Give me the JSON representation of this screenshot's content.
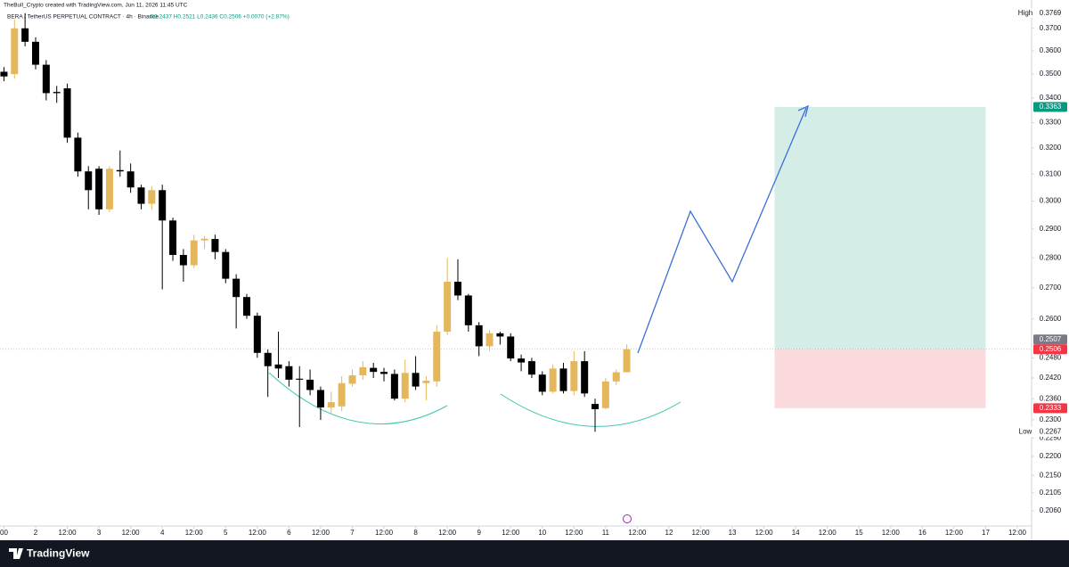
{
  "chart_data": {
    "type": "candlestick",
    "credit": "TheBull_Crypto created with TradingView.com, Jun 11, 2026 11:45 UTC",
    "title": "BERA / TetherUS PERPETUAL CONTRACT · 4h · Binance",
    "subtitle": "O0.2437 H0.2521 L0.2436 C0.2506 +0.0070 (+2.87%)",
    "brand": "TradingView",
    "log_scale": true,
    "grid": false,
    "up_color": "#e5b75c",
    "down_color": "#000000",
    "x": [
      12,
      16,
      20,
      24,
      28,
      32,
      36,
      40,
      44,
      48,
      52,
      56,
      60,
      64,
      68,
      72,
      76,
      80,
      84,
      88,
      92,
      96,
      100,
      104,
      108,
      112,
      116,
      120,
      124,
      128,
      132,
      136,
      140,
      144,
      148,
      152,
      156,
      160,
      164,
      168,
      172,
      176,
      180,
      184,
      188,
      192,
      196,
      200,
      204,
      208,
      212,
      216,
      220,
      224,
      228,
      232,
      236,
      240,
      244,
      248
    ],
    "open": [
      0.351,
      0.35,
      0.37,
      0.364,
      0.354,
      0.3425,
      0.344,
      0.324,
      0.311,
      0.312,
      0.297,
      0.3115,
      0.311,
      0.305,
      0.299,
      0.304,
      0.293,
      0.281,
      0.2775,
      0.286,
      0.2865,
      0.282,
      0.273,
      0.267,
      0.261,
      0.2495,
      0.246,
      0.2455,
      0.2418,
      0.2415,
      0.2385,
      0.2335,
      0.2338,
      0.2403,
      0.2428,
      0.245,
      0.2438,
      0.2432,
      0.236,
      0.2435,
      0.2405,
      0.241,
      0.256,
      0.272,
      0.2675,
      0.258,
      0.2515,
      0.2555,
      0.2545,
      0.2478,
      0.247,
      0.243,
      0.238,
      0.2448,
      0.2382,
      0.247,
      0.2345,
      0.2333,
      0.241,
      0.2437
    ],
    "high": [
      0.353,
      0.374,
      0.3769,
      0.366,
      0.356,
      0.345,
      0.346,
      0.326,
      0.313,
      0.313,
      0.313,
      0.319,
      0.314,
      0.306,
      0.3055,
      0.306,
      0.294,
      0.283,
      0.288,
      0.2875,
      0.288,
      0.283,
      0.2745,
      0.268,
      0.262,
      0.2505,
      0.256,
      0.247,
      0.2455,
      0.2445,
      0.2395,
      0.238,
      0.2425,
      0.2445,
      0.247,
      0.2465,
      0.245,
      0.2445,
      0.2475,
      0.2485,
      0.2425,
      0.258,
      0.28,
      0.2795,
      0.268,
      0.259,
      0.2565,
      0.256,
      0.2555,
      0.249,
      0.248,
      0.244,
      0.246,
      0.2465,
      0.25,
      0.25,
      0.236,
      0.242,
      0.2445,
      0.2521
    ],
    "low": [
      0.347,
      0.348,
      0.362,
      0.352,
      0.339,
      0.338,
      0.322,
      0.309,
      0.297,
      0.295,
      0.296,
      0.309,
      0.303,
      0.297,
      0.297,
      0.2695,
      0.279,
      0.272,
      0.2765,
      0.283,
      0.2795,
      0.2715,
      0.257,
      0.26,
      0.248,
      0.2365,
      0.242,
      0.2395,
      0.228,
      0.237,
      0.23,
      0.2315,
      0.2325,
      0.2395,
      0.2415,
      0.242,
      0.241,
      0.2355,
      0.235,
      0.2385,
      0.2355,
      0.2395,
      0.255,
      0.266,
      0.256,
      0.2485,
      0.25,
      0.252,
      0.247,
      0.244,
      0.242,
      0.237,
      0.2375,
      0.2375,
      0.237,
      0.2365,
      0.2267,
      0.233,
      0.24,
      0.2436
    ],
    "close": [
      0.349,
      0.37,
      0.364,
      0.354,
      0.342,
      0.342,
      0.324,
      0.311,
      0.304,
      0.297,
      0.312,
      0.311,
      0.305,
      0.299,
      0.304,
      0.293,
      0.281,
      0.2775,
      0.286,
      0.2866,
      0.282,
      0.273,
      0.267,
      0.261,
      0.2495,
      0.2455,
      0.2448,
      0.2415,
      0.2415,
      0.2385,
      0.2335,
      0.235,
      0.2405,
      0.2428,
      0.2452,
      0.2438,
      0.2432,
      0.236,
      0.2435,
      0.2395,
      0.2412,
      0.256,
      0.272,
      0.2675,
      0.258,
      0.2515,
      0.2555,
      0.2545,
      0.2478,
      0.2466,
      0.243,
      0.238,
      0.2448,
      0.2382,
      0.247,
      0.2375,
      0.233,
      0.241,
      0.2437,
      0.2506
    ],
    "xlim": [
      10.5,
      401.4
    ],
    "xticks": [
      {
        "value": 12,
        "label": "00"
      },
      24,
      {
        "value": 36,
        "label": "12:00"
      },
      48,
      {
        "value": 60,
        "label": "12:00"
      },
      72,
      {
        "value": 84,
        "label": "12:00"
      },
      96,
      {
        "value": 108,
        "label": "12:00"
      },
      120,
      {
        "value": 132,
        "label": "12:00"
      },
      144,
      {
        "value": 156,
        "label": "12:00"
      },
      168,
      {
        "value": 180,
        "label": "12:00"
      },
      192,
      {
        "value": 204,
        "label": "12:00"
      },
      216,
      {
        "value": 228,
        "label": "12:00"
      },
      240,
      {
        "value": 252,
        "label": "12:00"
      },
      264,
      {
        "value": 276,
        "label": "12:00"
      },
      288,
      {
        "value": 300,
        "label": "12:00"
      },
      312,
      {
        "value": 324,
        "label": "12:00"
      },
      336,
      {
        "value": 348,
        "label": "12:00"
      },
      360,
      {
        "value": 372,
        "label": "12:00"
      },
      384,
      {
        "value": 396,
        "label": "12:00"
      }
    ],
    "xtick_day_labels": [
      "2",
      "3",
      "4",
      "5",
      "6",
      "7",
      "8",
      "9",
      "10",
      "11",
      "12",
      "13",
      "14",
      "15",
      "16",
      "17"
    ],
    "ylim": [
      0.2022,
      0.378
    ],
    "yticks": [
      {
        "value": 0.37,
        "label": "0.3700"
      },
      {
        "value": 0.36,
        "label": "0.3600"
      },
      {
        "value": 0.35,
        "label": "0.3500"
      },
      {
        "value": 0.34,
        "label": "0.3400"
      },
      {
        "value": 0.33,
        "label": "0.3300"
      },
      {
        "value": 0.32,
        "label": "0.3200"
      },
      {
        "value": 0.31,
        "label": "0.3100"
      },
      {
        "value": 0.3,
        "label": "0.3000"
      },
      {
        "value": 0.29,
        "label": "0.2900"
      },
      {
        "value": 0.28,
        "label": "0.2800"
      },
      {
        "value": 0.27,
        "label": "0.2700"
      },
      {
        "value": 0.26,
        "label": "0.2600"
      },
      {
        "value": 0.248,
        "label": "0.2480"
      },
      {
        "value": 0.242,
        "label": "0.2420"
      },
      {
        "value": 0.236,
        "label": "0.2360"
      },
      {
        "value": 0.23,
        "label": "0.2300"
      },
      {
        "value": 0.225,
        "label": "0.2250"
      },
      {
        "value": 0.22,
        "label": "0.2200"
      },
      {
        "value": 0.215,
        "label": "0.2150"
      },
      0.2105,
      {
        "value": 0.206,
        "label": "0.2060"
      }
    ],
    "price_labels": [
      {
        "value": 0.3769,
        "tag": "High",
        "color": "#ffffff"
      },
      {
        "value": 0.3363,
        "color": "#089981"
      },
      {
        "value": 0.2507,
        "color": "#787b86"
      },
      {
        "value": 0.2506,
        "color": "#f23645"
      },
      {
        "value": 0.2333,
        "color": "#f23645"
      },
      {
        "value": 0.2267,
        "tag": "Low",
        "color": "#ffffff"
      }
    ],
    "position": {
      "target": 0.3363,
      "entry": 0.2506,
      "stop": 0.2333,
      "x_start": 304,
      "x_end": 384,
      "profit_color": "#d4ede6",
      "loss_color": "#fbdadd"
    }
  }
}
